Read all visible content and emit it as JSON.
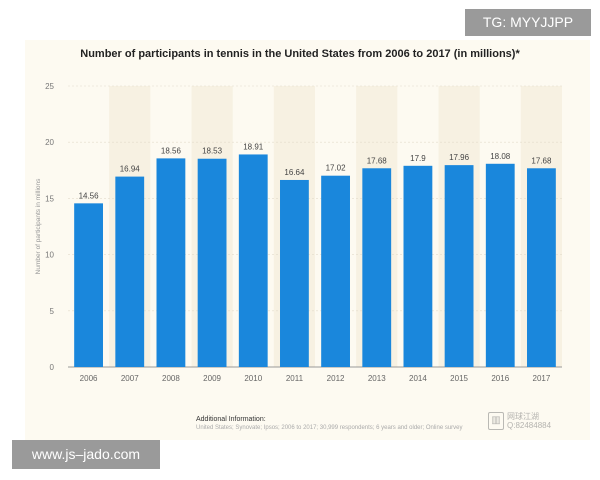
{
  "chart_data": {
    "type": "bar",
    "title": "Number of participants in tennis in the United States from 2006 to 2017 (in millions)*",
    "xlabel": "",
    "ylabel": "Number of participants in millions",
    "categories": [
      "2006",
      "2007",
      "2008",
      "2009",
      "2010",
      "2011",
      "2012",
      "2013",
      "2014",
      "2015",
      "2016",
      "2017"
    ],
    "values": [
      14.56,
      16.94,
      18.56,
      18.53,
      18.91,
      16.64,
      17.02,
      17.68,
      17.9,
      17.96,
      18.08,
      17.68
    ],
    "value_labels": [
      "14.56",
      "16.94",
      "18.56",
      "18.53",
      "18.91",
      "16.64",
      "17.02",
      "17.68",
      "17.9",
      "17.96",
      "18.08",
      "17.68"
    ],
    "ylim": [
      0,
      25
    ],
    "yticks": [
      "0",
      "5",
      "10",
      "15",
      "20",
      "25"
    ],
    "grid": true,
    "legend": "none",
    "bar_color": "#1a87dc"
  },
  "info": {
    "title": "Additional Information:",
    "text": "United States; Synovate; Ipsos; 2006 to 2017; 30,999 respondents; 6 years and older; Online survey"
  },
  "watermark": {
    "icon": "building-icon",
    "line1": "网球江湖",
    "line2": "Q:82484884"
  },
  "banners": {
    "top": "TG: MYYJJPP",
    "bottom": "www.js–jado.com"
  }
}
